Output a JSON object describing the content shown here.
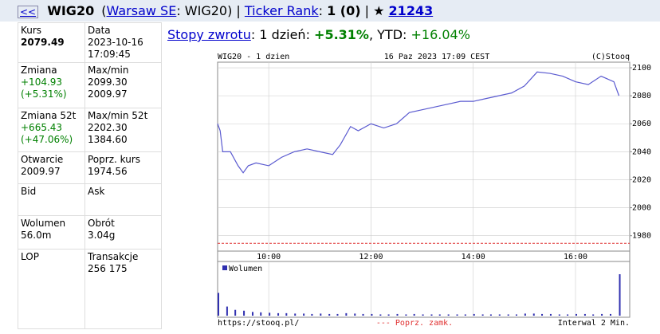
{
  "header": {
    "back": "<<",
    "symbol": "WIG20",
    "open": "(",
    "exchange": "Warsaw SE",
    "mid": ": WIG20) | ",
    "rank_link": "Ticker Rank",
    "colon": ": ",
    "rank": "1 (0)",
    "sep": " | ★ ",
    "count": "21243"
  },
  "table": {
    "rows": [
      [
        {
          "label": "Kurs",
          "lines": [
            "2079.49"
          ]
        },
        {
          "label": "Data",
          "lines": [
            "2023-10-16",
            "17:09:45"
          ]
        }
      ],
      [
        {
          "label": "Zmiana",
          "lines": [
            "+104.93",
            "(+5.31%)"
          ]
        },
        {
          "label": "Max/min",
          "lines": [
            "2099.30",
            "2009.97"
          ]
        }
      ],
      [
        {
          "label": "Zmiana 52t",
          "lines": [
            "+665.43",
            "(+47.06%)"
          ]
        },
        {
          "label": "Max/min 52t",
          "lines": [
            "2202.30",
            "1384.60"
          ]
        }
      ],
      [
        {
          "label": "Otwarcie",
          "lines": [
            "2009.97"
          ]
        },
        {
          "label": "Poprz. kurs",
          "lines": [
            "1974.56"
          ]
        }
      ],
      [
        {
          "label": "Bid",
          "lines": []
        },
        {
          "label": "Ask",
          "lines": []
        }
      ],
      [
        {
          "label": "Wolumen",
          "lines": [
            "56.0m"
          ]
        },
        {
          "label": "Obrót",
          "lines": [
            "3.04g"
          ]
        }
      ],
      [
        {
          "label": "LOP",
          "lines": []
        },
        {
          "label": "Transakcje",
          "lines": [
            "256 175"
          ]
        }
      ]
    ]
  },
  "returns": {
    "link": "Stopy zwrotu",
    "day_label": ": 1 dzień: ",
    "day": "+5.31%",
    "ytd_label": ", YTD: ",
    "ytd": "+16.04%"
  },
  "chart_data": {
    "type": "line",
    "title": "WIG20 - 1 dzien",
    "date": "16 Paz 2023 17:09 CEST",
    "credit": "(C)Stooq",
    "color": "#5a5ad0",
    "x": [
      9.0,
      9.05,
      9.1,
      9.25,
      9.4,
      9.5,
      9.6,
      9.75,
      10.0,
      10.25,
      10.5,
      10.75,
      11.0,
      11.25,
      11.4,
      11.6,
      11.75,
      12.0,
      12.25,
      12.5,
      12.75,
      13.0,
      13.25,
      13.5,
      13.75,
      14.0,
      14.25,
      14.5,
      14.75,
      15.0,
      15.25,
      15.5,
      15.75,
      16.0,
      16.25,
      16.5,
      16.75,
      16.85
    ],
    "values": [
      2060,
      2055,
      2040,
      2040,
      2030,
      2025,
      2030,
      2032,
      2030,
      2036,
      2040,
      2042,
      2040,
      2038,
      2045,
      2058,
      2055,
      2060,
      2057,
      2060,
      2068,
      2070,
      2072,
      2074,
      2076,
      2076,
      2078,
      2080,
      2082,
      2087,
      2097,
      2096,
      2094,
      2090,
      2088,
      2094,
      2090,
      2080
    ],
    "xlim": [
      9,
      17.06
    ],
    "ylim": [
      1969,
      2104
    ],
    "xticks": [
      {
        "value": 10,
        "label": "10:00"
      },
      {
        "value": 12,
        "label": "12:00"
      },
      {
        "value": 14,
        "label": "14:00"
      },
      {
        "value": 16,
        "label": "16:00"
      }
    ],
    "yticks": [
      1980,
      2000,
      2020,
      2040,
      2060,
      2080,
      2100
    ],
    "grid": true,
    "reference": {
      "value": 1974.56,
      "label": "--- Poprz. zamk.",
      "color": "#e03030"
    },
    "volume": {
      "name": "Wolumen",
      "color": "#3030b0",
      "x": [
        9.0,
        9.17,
        9.33,
        9.5,
        9.67,
        9.83,
        10.0,
        10.17,
        10.33,
        10.5,
        10.67,
        10.83,
        11.0,
        11.17,
        11.33,
        11.5,
        11.67,
        11.83,
        12.0,
        12.17,
        12.33,
        12.5,
        12.67,
        12.83,
        13.0,
        13.17,
        13.33,
        13.5,
        13.67,
        13.83,
        14.0,
        14.17,
        14.33,
        14.5,
        14.67,
        14.83,
        15.0,
        15.17,
        15.33,
        15.5,
        15.67,
        15.83,
        16.0,
        16.17,
        16.33,
        16.5,
        16.67,
        16.85
      ],
      "values": [
        55,
        22,
        14,
        12,
        9,
        8,
        7,
        6,
        6,
        5,
        5,
        4,
        5,
        4,
        4,
        6,
        5,
        4,
        4,
        3,
        3,
        4,
        3,
        4,
        3,
        3,
        3,
        3,
        3,
        3,
        4,
        3,
        3,
        3,
        3,
        3,
        5,
        5,
        4,
        4,
        3,
        3,
        4,
        4,
        3,
        4,
        4,
        100
      ]
    },
    "url": "https://stooq.pl/",
    "interval": "Interwal 2 Min."
  }
}
